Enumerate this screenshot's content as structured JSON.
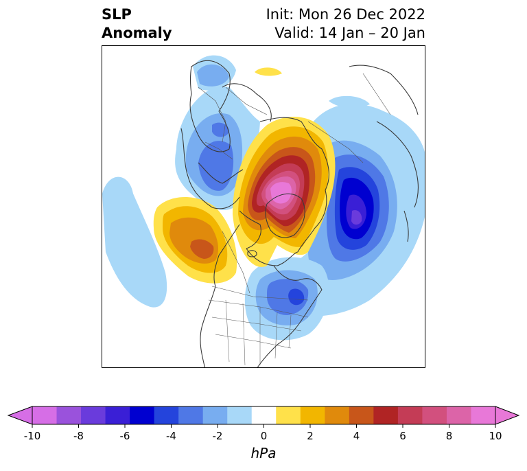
{
  "title": {
    "line1": "SLP",
    "line2": "Anomaly",
    "init": "Init: Mon 26 Dec 2022",
    "valid": "Valid: 14 Jan – 20 Jan"
  },
  "colorbar": {
    "unit_label": "hPa",
    "ticks": [
      "-10",
      "-8",
      "-6",
      "-4",
      "-2",
      "0",
      "2",
      "4",
      "6",
      "8",
      "10"
    ],
    "levels": [
      -10,
      -9,
      -8,
      -7,
      -6,
      -5,
      -4,
      -3,
      -2,
      -1,
      1,
      2,
      3,
      4,
      5,
      6,
      7,
      8,
      9,
      10
    ],
    "colors": [
      "#d66ee6",
      "#9a52dc",
      "#6a3bdc",
      "#3a1fd6",
      "#0000d0",
      "#2444dc",
      "#4f78e6",
      "#78adf0",
      "#a8d8f8",
      "#ffffff",
      "#ffe14a",
      "#f2b600",
      "#e08a0c",
      "#c8561a",
      "#b02424",
      "#c43c56",
      "#d2507e",
      "#dc64a8",
      "#e878d8"
    ],
    "extend_low_color": "#d66ee6",
    "extend_high_color": "#e878d8"
  },
  "map": {
    "projection": "polar stereographic, North Pole",
    "features": [
      "coastlines",
      "country borders",
      "US state borders"
    ],
    "anomaly_centers": [
      {
        "region": "Arctic / Eastern Siberia",
        "sign": "positive",
        "peak_hPa": 10
      },
      {
        "region": "Gulf of Alaska",
        "sign": "positive",
        "peak_hPa": 5
      },
      {
        "region": "North Atlantic / Greenland east",
        "sign": "negative",
        "peak_hPa": -8
      },
      {
        "region": "Europe / Scandinavia",
        "sign": "negative",
        "peak_hPa": -5
      },
      {
        "region": "Eastern Canada / Great Lakes",
        "sign": "negative",
        "peak_hPa": -5
      },
      {
        "region": "Central North Pacific",
        "sign": "negative",
        "peak_hPa": -2
      }
    ]
  }
}
